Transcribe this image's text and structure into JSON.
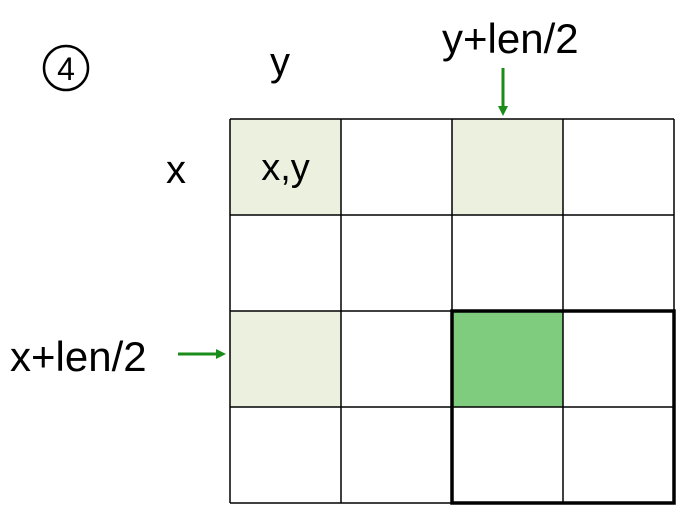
{
  "step_marker": "4",
  "labels": {
    "y": "y",
    "y_half": "y+len/2",
    "x": "x",
    "x_half": "x+len/2"
  },
  "grid": {
    "rows": 4,
    "cols": 4,
    "cell_text": "x,y",
    "colors": {
      "light_highlight": "#ebf0df",
      "strong_highlight": "#80cc7f",
      "arrow": "#1a8c1a",
      "line": "#000000"
    },
    "light_cells": [
      [
        0,
        0
      ],
      [
        0,
        2
      ],
      [
        2,
        0
      ]
    ],
    "strong_cells": [
      [
        2,
        2
      ]
    ],
    "bold_quadrant": {
      "row_start": 2,
      "col_start": 2,
      "rows": 2,
      "cols": 2
    }
  }
}
